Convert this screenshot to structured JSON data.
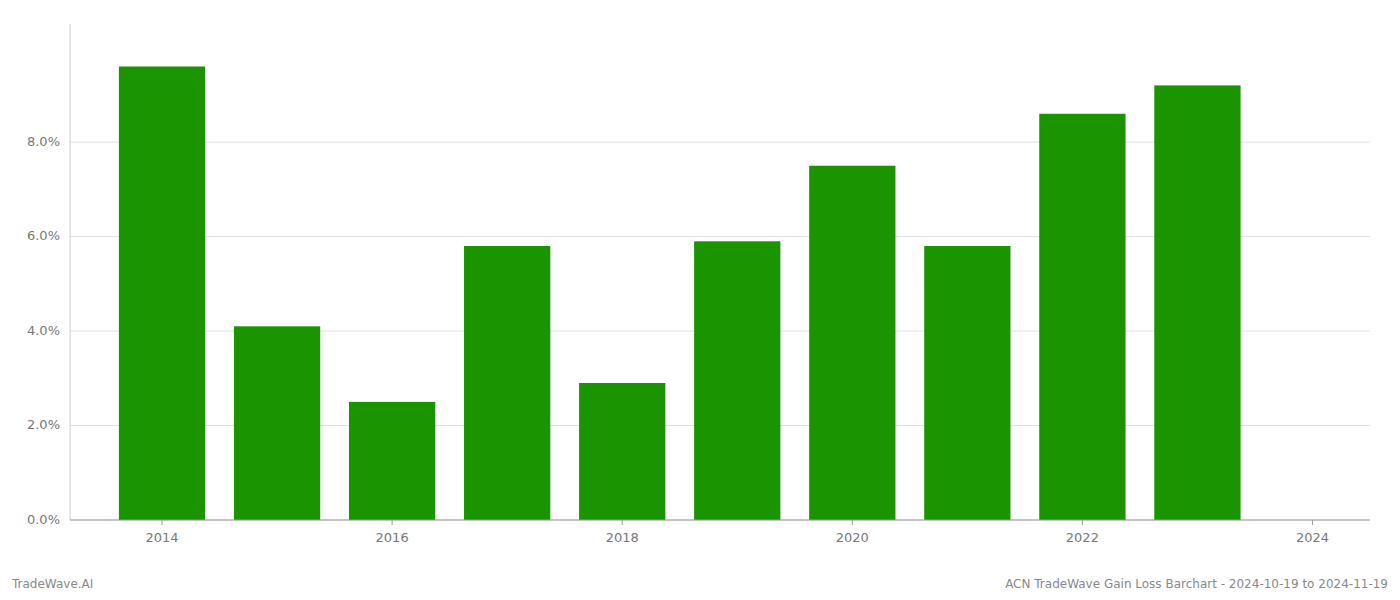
{
  "chart_data": {
    "type": "bar",
    "x": [
      2014,
      2015,
      2016,
      2017,
      2018,
      2019,
      2020,
      2021,
      2022,
      2023
    ],
    "values": [
      0.096,
      0.041,
      0.025,
      0.058,
      0.029,
      0.059,
      0.075,
      0.058,
      0.086,
      0.092
    ],
    "color": "#1a9400",
    "xlim": [
      2013.2,
      2024.5
    ],
    "xticks": [
      2014,
      2016,
      2018,
      2020,
      2022,
      2024
    ],
    "ylim": [
      0,
      0.105
    ],
    "yticks": [
      {
        "value": 0.0,
        "label": "0.0%"
      },
      {
        "value": 0.02,
        "label": "2.0%"
      },
      {
        "value": 0.04,
        "label": "4.0%"
      },
      {
        "value": 0.06,
        "label": "6.0%"
      },
      {
        "value": 0.08,
        "label": "8.0%"
      }
    ],
    "grid": true,
    "annotations": [
      "TradeWave.AI",
      "ACN TradeWave Gain Loss Barchart - 2024-10-19 to 2024-11-19"
    ]
  }
}
